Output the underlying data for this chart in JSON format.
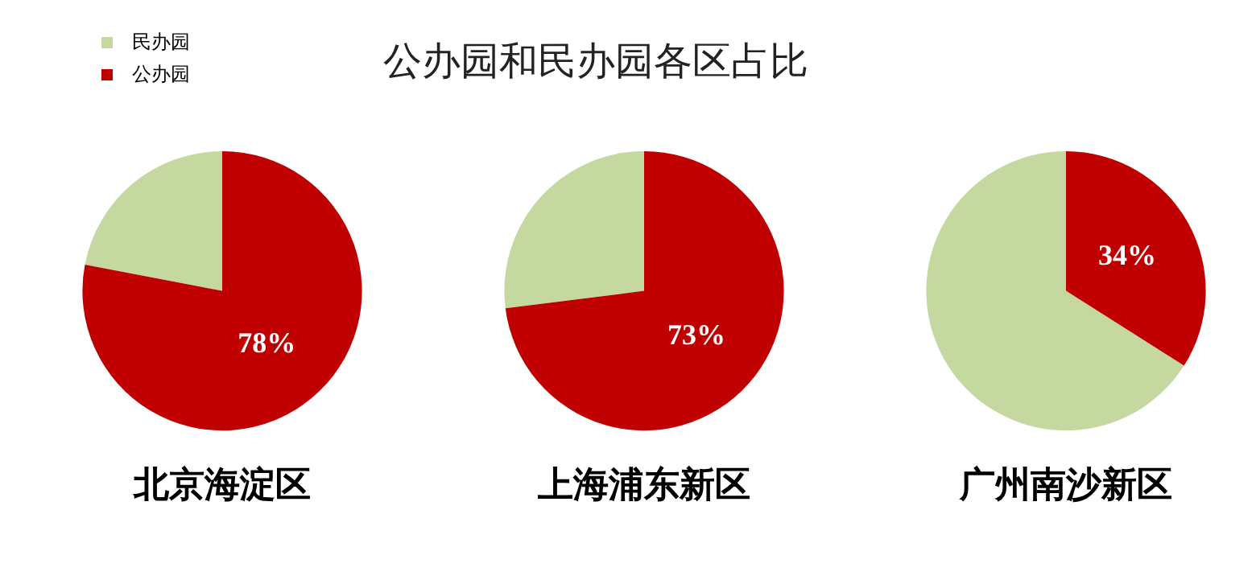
{
  "chart_data": [
    {
      "type": "other",
      "title": "公办园和民办园各区占比"
    },
    {
      "type": "pie",
      "title": "北京海淀区",
      "categories": [
        "民办园",
        "公办园"
      ],
      "values": [
        22,
        78
      ],
      "colors": [
        "#c4d89f",
        "#c00000"
      ],
      "value_labels": [
        null,
        "78%"
      ],
      "legend": "top left"
    },
    {
      "type": "pie",
      "title": "上海浦东新区",
      "categories": [
        null,
        null
      ],
      "values": [
        27,
        73
      ],
      "colors": [
        "#c4d89f",
        "#c00000"
      ],
      "value_labels": [
        null,
        "73%"
      ]
    },
    {
      "type": "pie",
      "title": "广州南沙新区",
      "categories": [
        null,
        null
      ],
      "values": [
        66,
        34
      ],
      "colors": [
        "#c4d89f",
        "#c00000"
      ],
      "value_labels": [
        null,
        "34%"
      ]
    }
  ]
}
